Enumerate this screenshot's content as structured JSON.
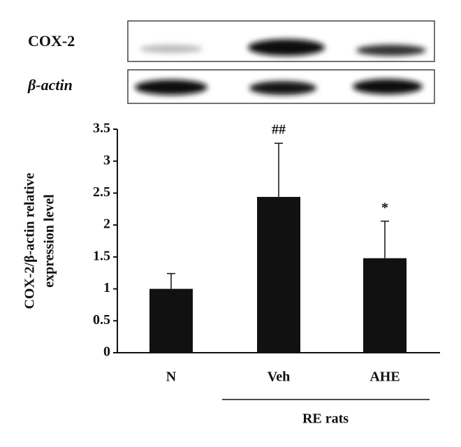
{
  "chart_data": {
    "type": "bar",
    "blots": [
      "COX-2",
      "β-actin"
    ],
    "ylabel": [
      "COX-2/β-actin relative",
      "expression level"
    ],
    "categories": [
      "N",
      "Veh",
      "AHE"
    ],
    "values": [
      1.0,
      2.44,
      1.48
    ],
    "errors": [
      0.24,
      0.84,
      0.58
    ],
    "annotations": [
      null,
      "##",
      "*"
    ],
    "group_label": "RE rats",
    "color": "#111111",
    "ylim": [
      0,
      3.5
    ],
    "yticks": [
      0,
      0.5,
      1,
      1.5,
      2,
      2.5,
      3,
      3.5
    ],
    "grid": false
  }
}
